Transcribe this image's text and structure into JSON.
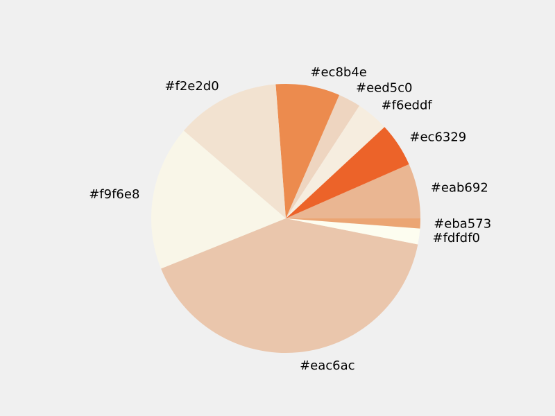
{
  "chart_data": {
    "type": "pie",
    "start_angle_deg": 0,
    "direction": "counterclockwise",
    "slices": [
      {
        "label": "#eab692",
        "value": 6.6,
        "color": "#eab692"
      },
      {
        "label": "#ec6329",
        "value": 5.3,
        "color": "#ec6329"
      },
      {
        "label": "#f6eddf",
        "value": 3.9,
        "color": "#f6eddf"
      },
      {
        "label": "#eed5c0",
        "value": 2.7,
        "color": "#eed5c0"
      },
      {
        "label": "#ec8b4e",
        "value": 7.7,
        "color": "#ec8b4e"
      },
      {
        "label": "#f2e2d0",
        "value": 12.5,
        "color": "#f2e2d0"
      },
      {
        "label": "#f9f6e8",
        "value": 17.4,
        "color": "#f9f6e8"
      },
      {
        "label": "#eac6ac",
        "value": 40.8,
        "color": "#eac6ac"
      },
      {
        "label": "#fdfdf0",
        "value": 1.9,
        "color": "#fdfdf0"
      },
      {
        "label": "#eba573",
        "value": 1.2,
        "color": "#eba573"
      }
    ]
  }
}
